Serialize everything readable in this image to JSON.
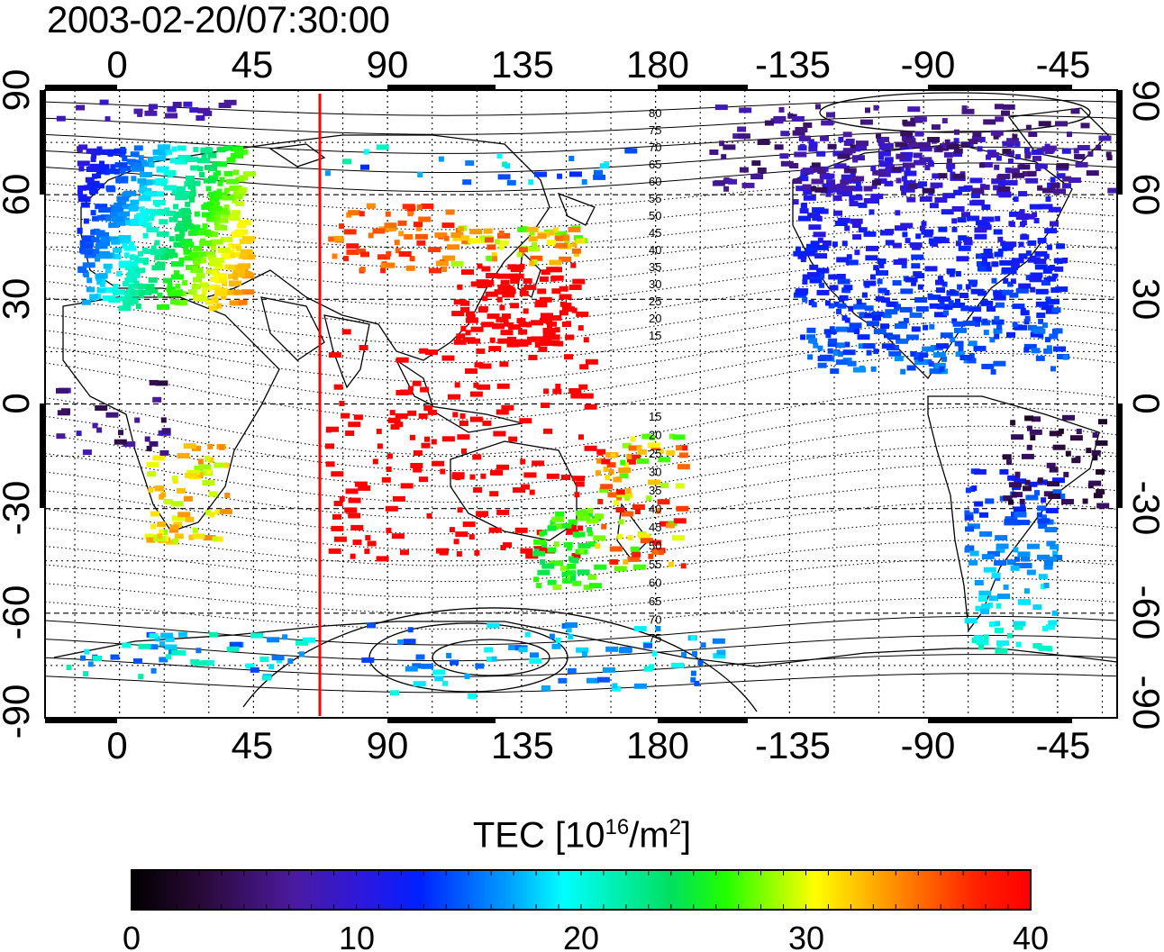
{
  "title": "2003-02-20/07:30:00",
  "map": {
    "top_lon_labels": [
      "0",
      "45",
      "90",
      "135",
      "180",
      "-135",
      "-90",
      "-45"
    ],
    "bottom_lon_labels": [
      "0",
      "45",
      "90",
      "135",
      "180",
      "-135",
      "-90",
      "-45"
    ],
    "left_lat_labels": [
      "90",
      "60",
      "30",
      "0",
      "-30",
      "-60",
      "-90"
    ],
    "right_lat_labels": [
      "90",
      "60",
      "30",
      "0",
      "-30",
      "-60",
      "-90"
    ],
    "contour_labels_north": [
      "80",
      "75",
      "70",
      "65",
      "60",
      "55",
      "50",
      "45",
      "40",
      "35",
      "30",
      "25",
      "20",
      "15"
    ],
    "contour_labels_south": [
      "15",
      "20",
      "25",
      "30",
      "35",
      "40",
      "45",
      "50",
      "55",
      "60",
      "65",
      "70",
      "75"
    ],
    "marker_line_color": "#ff0000",
    "marker_longitude": 68
  },
  "colorbar": {
    "label_main": "TEC  [10",
    "label_exp1": "16",
    "label_mid": "/m",
    "label_exp2": "2",
    "label_end": "]",
    "tick_labels": [
      "0",
      "10",
      "20",
      "30",
      "40"
    ],
    "range": [
      0,
      40
    ]
  }
}
